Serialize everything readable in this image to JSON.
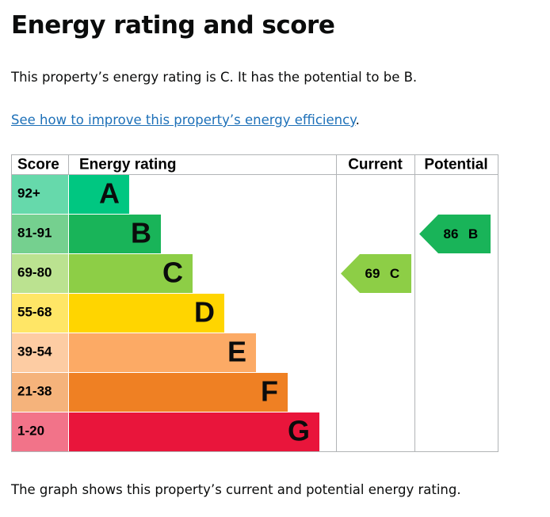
{
  "header": {
    "title": "Energy rating and score"
  },
  "intro": "This property’s energy rating is C. It has the potential to be B.",
  "link": {
    "text": "See how to improve this property’s energy efficiency",
    "after": "."
  },
  "table": {
    "headers": [
      "Score",
      "Energy rating",
      "Current",
      "Potential"
    ],
    "rows": [
      {
        "score": "92+",
        "rating": "A"
      },
      {
        "score": "81-91",
        "rating": "B"
      },
      {
        "score": "69-80",
        "rating": "C"
      },
      {
        "score": "55-68",
        "rating": "D"
      },
      {
        "score": "39-54",
        "rating": "E"
      },
      {
        "score": "21-38",
        "rating": "F"
      },
      {
        "score": "1-20",
        "rating": "G"
      }
    ],
    "current": {
      "score": "69",
      "rating": "C"
    },
    "potential": {
      "score": "86",
      "rating": "B"
    }
  },
  "footer": "The graph shows this property’s current and potential energy rating."
}
